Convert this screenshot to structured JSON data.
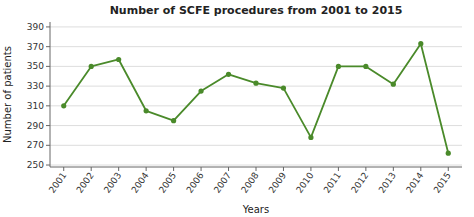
{
  "chart_data": {
    "type": "line",
    "title": "Number of SCFE procedures from 2001 to 2015",
    "xlabel": "Years",
    "ylabel": "Number of patients",
    "x": [
      2001,
      2002,
      2003,
      2004,
      2005,
      2006,
      2007,
      2008,
      2009,
      2010,
      2011,
      2012,
      2013,
      2014,
      2015
    ],
    "values": [
      310,
      350,
      357,
      305,
      295,
      325,
      342,
      333,
      328,
      278,
      350,
      350,
      332,
      373,
      262
    ],
    "color": "#4a8a2a",
    "marker": "circle",
    "xlim": [
      2000.5,
      2015.5
    ],
    "xticks": [
      2001,
      2002,
      2003,
      2004,
      2005,
      2006,
      2007,
      2008,
      2009,
      2010,
      2011,
      2012,
      2013,
      2014,
      2015
    ],
    "ylim": [
      248,
      395
    ],
    "yticks": [
      250,
      270,
      290,
      310,
      330,
      350,
      370,
      390
    ],
    "grid": "y"
  }
}
